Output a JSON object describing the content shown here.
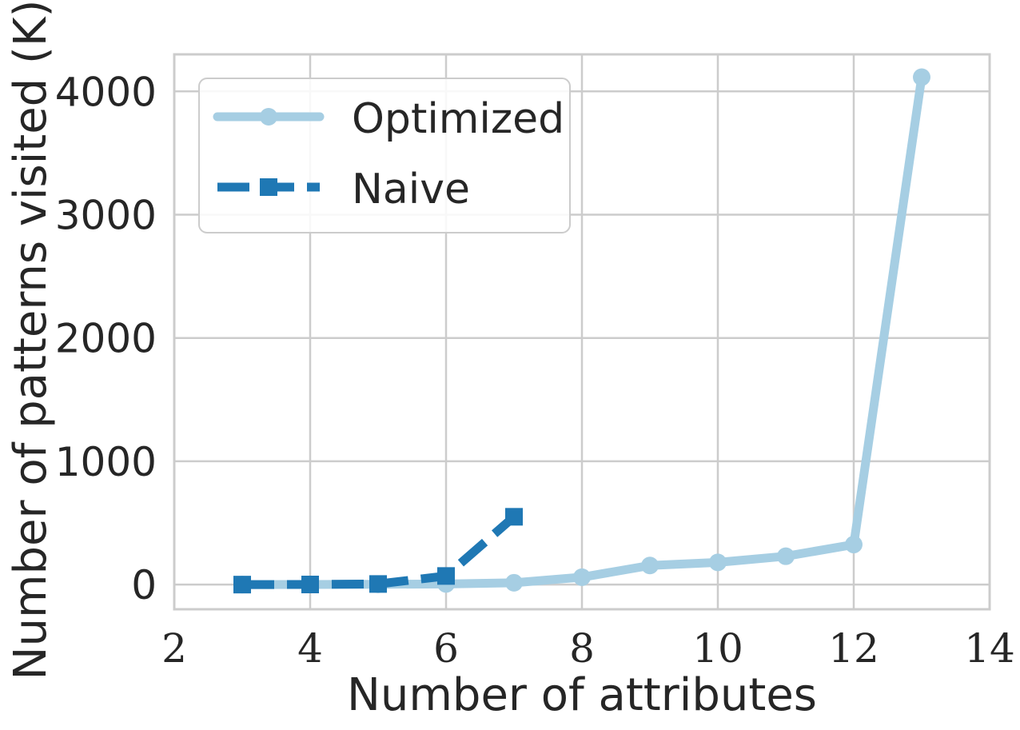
{
  "chart_data": {
    "type": "line",
    "xlabel": "Number of attributes",
    "ylabel": "Number of patterns visited (K)",
    "xlim": [
      2,
      14
    ],
    "ylim": [
      -200,
      4300
    ],
    "xticks": [
      2,
      4,
      6,
      8,
      10,
      12,
      14
    ],
    "yticks": [
      0,
      1000,
      2000,
      3000,
      4000
    ],
    "grid": true,
    "legend_position": "top-left",
    "series": [
      {
        "name": "Optimized",
        "color": "#a6cee3",
        "style": "solid",
        "marker": "circle",
        "x": [
          3,
          4,
          5,
          6,
          7,
          8,
          9,
          10,
          11,
          12,
          13
        ],
        "y": [
          0,
          1,
          3,
          5,
          15,
          60,
          155,
          180,
          230,
          325,
          4115
        ]
      },
      {
        "name": "Naive",
        "color": "#1f78b4",
        "style": "dashed",
        "marker": "square",
        "x": [
          3,
          4,
          5,
          6,
          7
        ],
        "y": [
          0,
          1,
          5,
          70,
          550
        ]
      }
    ]
  }
}
